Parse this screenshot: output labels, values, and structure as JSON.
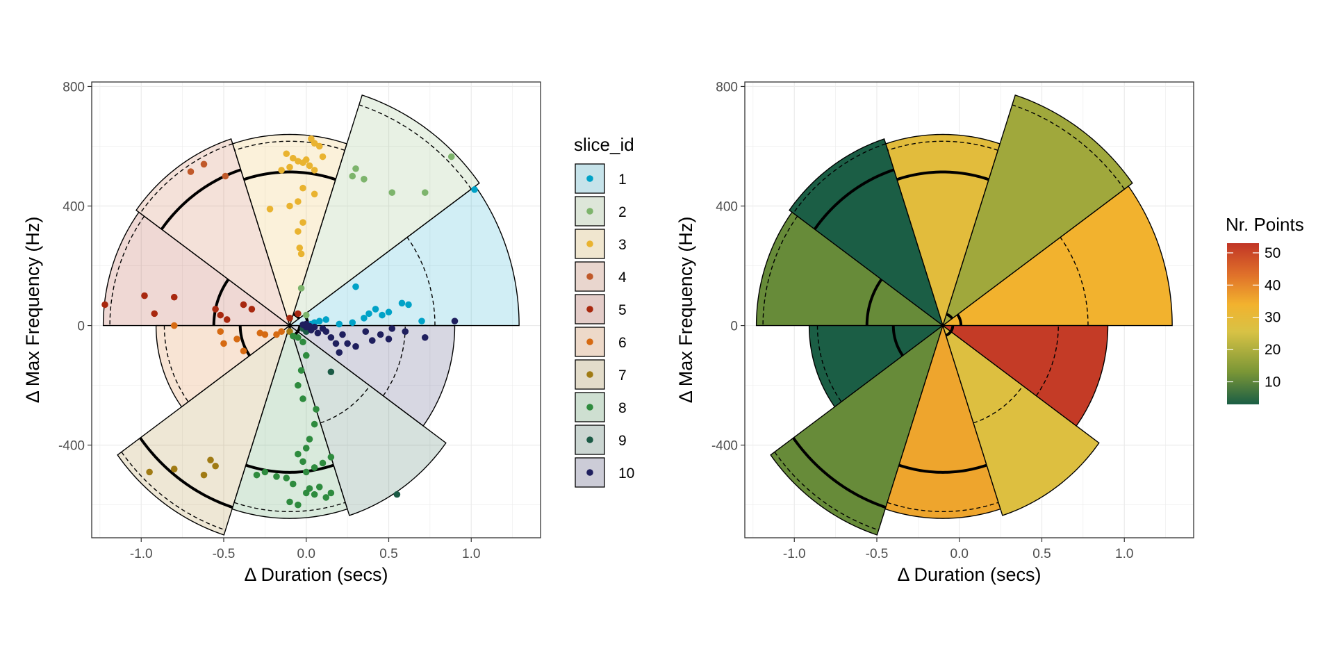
{
  "chart_data": [
    {
      "type": "scatter",
      "subtype": "polar-sector-overlay",
      "xlabel": "Δ Duration (secs)",
      "ylabel": "Δ Max Frequency (Hz)",
      "xticks": [
        "-1.0",
        "-0.5",
        "0.0",
        "0.5",
        "1.0"
      ],
      "yticks": [
        "-400",
        "0",
        "400",
        "800"
      ],
      "xlim": [
        -1.3,
        1.42
      ],
      "ylim": [
        -710,
        815
      ],
      "grid": true,
      "legend": {
        "title": "slice_id",
        "position": "right",
        "entries": [
          "1",
          "2",
          "3",
          "4",
          "5",
          "6",
          "7",
          "8",
          "9",
          "10"
        ]
      },
      "colors": [
        "#00A2C7",
        "#7DB46C",
        "#E9B330",
        "#C0592A",
        "#A8280F",
        "#D66A12",
        "#A07B14",
        "#2E8B3E",
        "#1B5A45",
        "#1F1F5E"
      ],
      "center": [
        -0.1,
        0
      ],
      "y_per_x_unit": 571,
      "slices": [
        {
          "id": 1,
          "from_deg": 0,
          "to_deg": 36,
          "outer": 1.39,
          "dashed": 0.88,
          "solid": 0.11,
          "count": 33
        },
        {
          "id": 2,
          "from_deg": 36,
          "to_deg": 72,
          "outer": 1.42,
          "dashed": 1.36,
          "solid": 0.07,
          "count": 17
        },
        {
          "id": 3,
          "from_deg": 72,
          "to_deg": 108,
          "outer": 1.12,
          "dashed": 1.08,
          "solid": 0.9,
          "count": 27
        },
        {
          "id": 4,
          "from_deg": 108,
          "to_deg": 144,
          "outer": 1.15,
          "dashed": 1.12,
          "solid": 0.96,
          "count": 3
        },
        {
          "id": 5,
          "from_deg": 144,
          "to_deg": 180,
          "outer": 1.13,
          "dashed": 1.09,
          "solid": 0.46,
          "count": 11
        },
        {
          "id": 6,
          "from_deg": 180,
          "to_deg": 216,
          "outer": 0.81,
          "dashed": 0.76,
          "solid": 0.3,
          "count": 3
        },
        {
          "id": 7,
          "from_deg": 216,
          "to_deg": 252,
          "outer": 1.29,
          "dashed": 1.26,
          "solid": 1.12,
          "count": 11
        },
        {
          "id": 8,
          "from_deg": 252,
          "to_deg": 288,
          "outer": 1.13,
          "dashed": 1.09,
          "solid": 0.86,
          "count": 35
        },
        {
          "id": 9,
          "from_deg": 288,
          "to_deg": 324,
          "outer": 1.17,
          "dashed": 0.6,
          "solid": 0.06,
          "count": 25
        },
        {
          "id": 10,
          "from_deg": 324,
          "to_deg": 360,
          "outer": 1.0,
          "dashed": 0.7,
          "solid": 0.06,
          "count": 52
        }
      ],
      "points": [
        {
          "slice": 1,
          "x": 1.02,
          "y": 455
        },
        {
          "slice": 1,
          "x": 0.7,
          "y": 15
        },
        {
          "slice": 1,
          "x": 0.62,
          "y": 70
        },
        {
          "slice": 1,
          "x": 0.58,
          "y": 75
        },
        {
          "slice": 1,
          "x": 0.5,
          "y": 45
        },
        {
          "slice": 1,
          "x": 0.46,
          "y": 35
        },
        {
          "slice": 1,
          "x": 0.42,
          "y": 55
        },
        {
          "slice": 1,
          "x": 0.38,
          "y": 40
        },
        {
          "slice": 1,
          "x": 0.35,
          "y": 25
        },
        {
          "slice": 1,
          "x": 0.3,
          "y": 130
        },
        {
          "slice": 1,
          "x": 0.28,
          "y": 10
        },
        {
          "slice": 1,
          "x": 0.2,
          "y": 5
        },
        {
          "slice": 1,
          "x": 0.12,
          "y": 20
        },
        {
          "slice": 1,
          "x": 0.08,
          "y": 15
        },
        {
          "slice": 1,
          "x": 0.05,
          "y": 10
        },
        {
          "slice": 1,
          "x": 0.03,
          "y": 5
        },
        {
          "slice": 2,
          "x": 0.88,
          "y": 565
        },
        {
          "slice": 2,
          "x": 0.72,
          "y": 445
        },
        {
          "slice": 2,
          "x": 0.52,
          "y": 445
        },
        {
          "slice": 2,
          "x": 0.35,
          "y": 490
        },
        {
          "slice": 2,
          "x": 0.3,
          "y": 525
        },
        {
          "slice": 2,
          "x": 0.28,
          "y": 500
        },
        {
          "slice": 2,
          "x": -0.03,
          "y": 125
        },
        {
          "slice": 2,
          "x": 0.0,
          "y": 35
        },
        {
          "slice": 3,
          "x": 0.03,
          "y": 625
        },
        {
          "slice": 3,
          "x": 0.05,
          "y": 610
        },
        {
          "slice": 3,
          "x": 0.08,
          "y": 600
        },
        {
          "slice": 3,
          "x": 0.1,
          "y": 565
        },
        {
          "slice": 3,
          "x": -0.12,
          "y": 575
        },
        {
          "slice": 3,
          "x": -0.08,
          "y": 560
        },
        {
          "slice": 3,
          "x": -0.05,
          "y": 550
        },
        {
          "slice": 3,
          "x": -0.02,
          "y": 545
        },
        {
          "slice": 3,
          "x": 0.0,
          "y": 555
        },
        {
          "slice": 3,
          "x": 0.02,
          "y": 535
        },
        {
          "slice": 3,
          "x": -0.1,
          "y": 530
        },
        {
          "slice": 3,
          "x": 0.05,
          "y": 520
        },
        {
          "slice": 3,
          "x": -0.15,
          "y": 520
        },
        {
          "slice": 3,
          "x": -0.02,
          "y": 460
        },
        {
          "slice": 3,
          "x": 0.05,
          "y": 440
        },
        {
          "slice": 3,
          "x": -0.05,
          "y": 415
        },
        {
          "slice": 3,
          "x": -0.1,
          "y": 400
        },
        {
          "slice": 3,
          "x": -0.22,
          "y": 390
        },
        {
          "slice": 3,
          "x": -0.02,
          "y": 345
        },
        {
          "slice": 3,
          "x": -0.05,
          "y": 315
        },
        {
          "slice": 3,
          "x": -0.04,
          "y": 260
        },
        {
          "slice": 3,
          "x": -0.03,
          "y": 240
        },
        {
          "slice": 4,
          "x": -0.62,
          "y": 540
        },
        {
          "slice": 4,
          "x": -0.49,
          "y": 500
        },
        {
          "slice": 4,
          "x": -0.7,
          "y": 515
        },
        {
          "slice": 5,
          "x": -1.22,
          "y": 70
        },
        {
          "slice": 5,
          "x": -0.98,
          "y": 100
        },
        {
          "slice": 5,
          "x": -0.92,
          "y": 40
        },
        {
          "slice": 5,
          "x": -0.8,
          "y": 95
        },
        {
          "slice": 5,
          "x": -0.55,
          "y": 55
        },
        {
          "slice": 5,
          "x": -0.52,
          "y": 35
        },
        {
          "slice": 5,
          "x": -0.48,
          "y": 20
        },
        {
          "slice": 5,
          "x": -0.38,
          "y": 70
        },
        {
          "slice": 5,
          "x": -0.33,
          "y": 55
        },
        {
          "slice": 5,
          "x": -0.05,
          "y": 40
        },
        {
          "slice": 5,
          "x": -0.1,
          "y": 25
        },
        {
          "slice": 6,
          "x": -0.8,
          "y": 0
        },
        {
          "slice": 6,
          "x": -0.52,
          "y": -20
        },
        {
          "slice": 6,
          "x": -0.5,
          "y": -60
        },
        {
          "slice": 6,
          "x": -0.42,
          "y": -45
        },
        {
          "slice": 6,
          "x": -0.38,
          "y": -85
        },
        {
          "slice": 6,
          "x": -0.28,
          "y": -25
        },
        {
          "slice": 6,
          "x": -0.25,
          "y": -30
        },
        {
          "slice": 6,
          "x": -0.18,
          "y": -30
        },
        {
          "slice": 6,
          "x": -0.15,
          "y": -20
        },
        {
          "slice": 7,
          "x": -0.95,
          "y": -490
        },
        {
          "slice": 7,
          "x": -0.8,
          "y": -480
        },
        {
          "slice": 7,
          "x": -0.62,
          "y": -500
        },
        {
          "slice": 7,
          "x": -0.58,
          "y": -450
        },
        {
          "slice": 7,
          "x": -0.55,
          "y": -470
        },
        {
          "slice": 7,
          "x": -0.1,
          "y": -20
        },
        {
          "slice": 8,
          "x": -0.1,
          "y": -590
        },
        {
          "slice": 8,
          "x": -0.05,
          "y": -600
        },
        {
          "slice": 8,
          "x": 0.0,
          "y": -560
        },
        {
          "slice": 8,
          "x": 0.02,
          "y": -545
        },
        {
          "slice": 8,
          "x": 0.05,
          "y": -565
        },
        {
          "slice": 8,
          "x": 0.08,
          "y": -540
        },
        {
          "slice": 8,
          "x": 0.12,
          "y": -575
        },
        {
          "slice": 8,
          "x": 0.15,
          "y": -560
        },
        {
          "slice": 8,
          "x": -0.08,
          "y": -530
        },
        {
          "slice": 8,
          "x": -0.12,
          "y": -510
        },
        {
          "slice": 8,
          "x": -0.18,
          "y": -505
        },
        {
          "slice": 8,
          "x": -0.25,
          "y": -490
        },
        {
          "slice": 8,
          "x": -0.3,
          "y": -500
        },
        {
          "slice": 8,
          "x": 0.0,
          "y": -490
        },
        {
          "slice": 8,
          "x": 0.05,
          "y": -475
        },
        {
          "slice": 8,
          "x": 0.1,
          "y": -460
        },
        {
          "slice": 8,
          "x": 0.15,
          "y": -440
        },
        {
          "slice": 8,
          "x": -0.02,
          "y": -455
        },
        {
          "slice": 8,
          "x": -0.05,
          "y": -430
        },
        {
          "slice": 8,
          "x": 0.0,
          "y": -410
        },
        {
          "slice": 8,
          "x": 0.02,
          "y": -380
        },
        {
          "slice": 8,
          "x": 0.05,
          "y": -330
        },
        {
          "slice": 8,
          "x": 0.06,
          "y": -280
        },
        {
          "slice": 8,
          "x": -0.02,
          "y": -245
        },
        {
          "slice": 8,
          "x": -0.05,
          "y": -200
        },
        {
          "slice": 8,
          "x": -0.03,
          "y": -150
        },
        {
          "slice": 8,
          "x": 0.0,
          "y": -100
        },
        {
          "slice": 8,
          "x": -0.02,
          "y": -55
        },
        {
          "slice": 8,
          "x": -0.05,
          "y": -40
        },
        {
          "slice": 8,
          "x": -0.08,
          "y": -35
        },
        {
          "slice": 9,
          "x": 0.55,
          "y": -565
        },
        {
          "slice": 9,
          "x": 0.15,
          "y": -155
        },
        {
          "slice": 9,
          "x": 0.0,
          "y": -20
        },
        {
          "slice": 9,
          "x": -0.02,
          "y": -10
        },
        {
          "slice": 10,
          "x": 0.9,
          "y": 15
        },
        {
          "slice": 10,
          "x": 0.72,
          "y": -40
        },
        {
          "slice": 10,
          "x": 0.6,
          "y": -20
        },
        {
          "slice": 10,
          "x": 0.52,
          "y": -10
        },
        {
          "slice": 10,
          "x": 0.5,
          "y": -45
        },
        {
          "slice": 10,
          "x": 0.45,
          "y": -30
        },
        {
          "slice": 10,
          "x": 0.4,
          "y": -50
        },
        {
          "slice": 10,
          "x": 0.36,
          "y": -20
        },
        {
          "slice": 10,
          "x": 0.3,
          "y": -70
        },
        {
          "slice": 10,
          "x": 0.25,
          "y": -60
        },
        {
          "slice": 10,
          "x": 0.22,
          "y": -30
        },
        {
          "slice": 10,
          "x": 0.2,
          "y": -90
        },
        {
          "slice": 10,
          "x": 0.18,
          "y": -60
        },
        {
          "slice": 10,
          "x": 0.15,
          "y": -40
        },
        {
          "slice": 10,
          "x": 0.12,
          "y": -20
        },
        {
          "slice": 10,
          "x": 0.1,
          "y": -10
        },
        {
          "slice": 10,
          "x": 0.07,
          "y": -25
        },
        {
          "slice": 10,
          "x": 0.05,
          "y": -5
        },
        {
          "slice": 10,
          "x": 0.03,
          "y": -15
        },
        {
          "slice": 10,
          "x": 0.0,
          "y": -5
        },
        {
          "slice": 10,
          "x": 0.0,
          "y": 5
        },
        {
          "slice": 10,
          "x": 0.02,
          "y": -2
        },
        {
          "slice": 10,
          "x": -0.02,
          "y": 3
        }
      ]
    },
    {
      "type": "polar-area",
      "xlabel": "Δ Duration (secs)",
      "ylabel": "Δ Max Frequency (Hz)",
      "xticks": [
        "-1.0",
        "-0.5",
        "0.0",
        "0.5",
        "1.0"
      ],
      "yticks": [
        "-400",
        "0",
        "400",
        "800"
      ],
      "xlim": [
        -1.3,
        1.42
      ],
      "ylim": [
        -710,
        815
      ],
      "grid": true,
      "legend": {
        "title": "Nr. Points",
        "position": "right",
        "type": "colorbar",
        "ticks": [
          "10",
          "20",
          "30",
          "40",
          "50"
        ],
        "range": [
          3,
          53
        ]
      },
      "color_scale": [
        "#1B5E45",
        "#7A9636",
        "#D8C245",
        "#F2B22E",
        "#E0722A",
        "#C13526"
      ],
      "fill_by": "count"
    }
  ]
}
